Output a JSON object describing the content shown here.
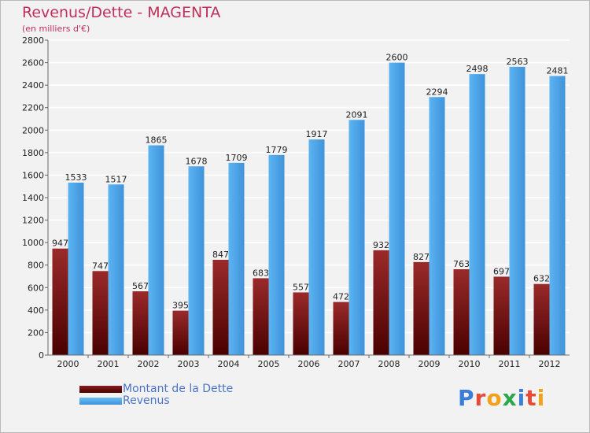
{
  "header": {
    "title": "Revenus/Dette - MAGENTA",
    "subtitle": "(en milliers d'€)"
  },
  "colors": {
    "debt": "#7a1010",
    "revenue": "#4aa3e8",
    "title": "#c0305a",
    "legend_text": "#4a74c8"
  },
  "legend": {
    "position": "bottom-left",
    "items": [
      {
        "label": "Montant de la Dette",
        "color": "#6e0c0c"
      },
      {
        "label": "Revenus",
        "color": "#49a0e6"
      }
    ]
  },
  "logo": {
    "text": "Proxiti",
    "letter_colors": [
      "#3a7ed8",
      "#e84a3a",
      "#f2a21a",
      "#2aa84a",
      "#3a7ed8",
      "#e84a3a",
      "#f2a21a"
    ]
  },
  "chart_data": {
    "type": "bar",
    "title": "Revenus/Dette - MAGENTA",
    "subtitle": "(en milliers d'€)",
    "categories": [
      "2000",
      "2001",
      "2002",
      "2003",
      "2004",
      "2005",
      "2006",
      "2007",
      "2008",
      "2009",
      "2010",
      "2011",
      "2012"
    ],
    "series": [
      {
        "name": "Montant de la Dette",
        "values": [
          947,
          747,
          567,
          395,
          847,
          683,
          557,
          472,
          932,
          827,
          763,
          697,
          632
        ]
      },
      {
        "name": "Revenus",
        "values": [
          1533,
          1517,
          1865,
          1678,
          1709,
          1779,
          1917,
          2091,
          2600,
          2294,
          2498,
          2563,
          2481
        ]
      }
    ],
    "ylim": [
      0,
      2800
    ],
    "yticks": [
      0,
      200,
      400,
      600,
      800,
      1000,
      1200,
      1400,
      1600,
      1800,
      2000,
      2200,
      2400,
      2600,
      2800
    ],
    "grid": true,
    "legend_placement": "bottom-left"
  }
}
